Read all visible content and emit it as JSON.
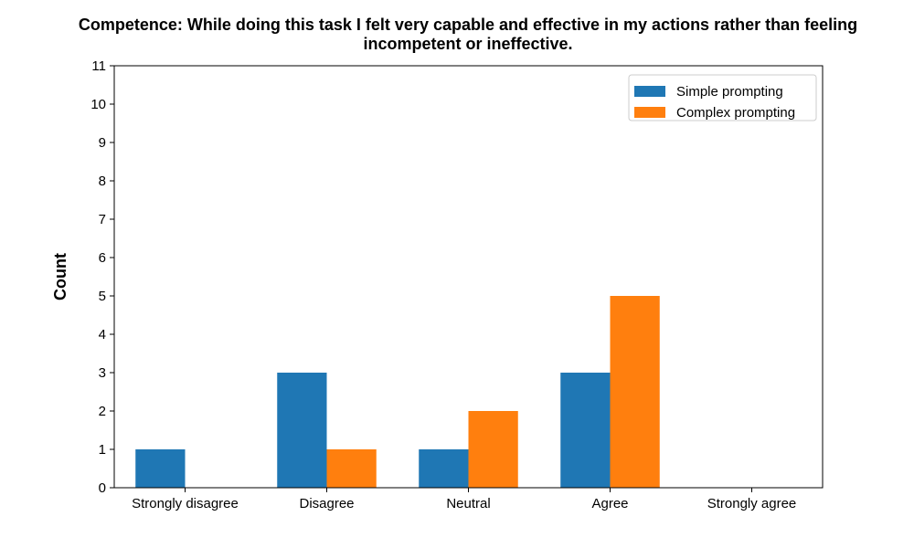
{
  "chart_data": {
    "type": "bar",
    "title_lines": [
      "Competence: While doing this task I felt very capable and effective in my actions rather than feeling",
      "incompetent or ineffective."
    ],
    "xlabel": "",
    "ylabel": "Count",
    "categories": [
      "Strongly disagree",
      "Disagree",
      "Neutral",
      "Agree",
      "Strongly agree"
    ],
    "series": [
      {
        "name": "Simple prompting",
        "color": "#1f77b4",
        "values": [
          1,
          3,
          1,
          3,
          0
        ]
      },
      {
        "name": "Complex prompting",
        "color": "#ff7f0e",
        "values": [
          0,
          1,
          2,
          5,
          0
        ]
      }
    ],
    "ylim": [
      0,
      11
    ],
    "yticks": [
      0,
      1,
      2,
      3,
      4,
      5,
      6,
      7,
      8,
      9,
      10,
      11
    ],
    "grid": false,
    "legend_position": "top-right"
  }
}
